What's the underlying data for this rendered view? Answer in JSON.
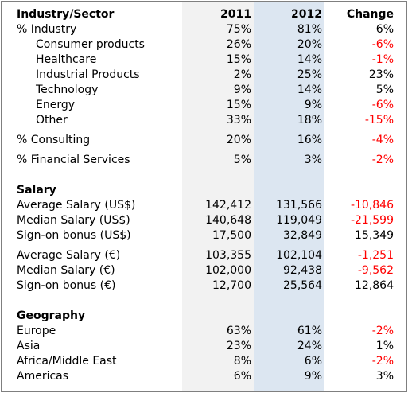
{
  "header": {
    "label": "Industry/Sector",
    "col_2011": "2011",
    "col_2012": "2012",
    "col_change": "Change"
  },
  "industry": [
    {
      "label": "% Industry",
      "v2011": "75%",
      "v2012": "81%",
      "change": "6%",
      "negative": false,
      "indent": false
    },
    {
      "label": "Consumer products",
      "v2011": "26%",
      "v2012": "20%",
      "change": "-6%",
      "negative": true,
      "indent": true
    },
    {
      "label": "Healthcare",
      "v2011": "15%",
      "v2012": "14%",
      "change": "-1%",
      "negative": true,
      "indent": true
    },
    {
      "label": "Industrial Products",
      "v2011": "2%",
      "v2012": "25%",
      "change": "23%",
      "negative": false,
      "indent": true
    },
    {
      "label": "Technology",
      "v2011": "9%",
      "v2012": "14%",
      "change": "5%",
      "negative": false,
      "indent": true
    },
    {
      "label": "Energy",
      "v2011": "15%",
      "v2012": "9%",
      "change": "-6%",
      "negative": true,
      "indent": true
    },
    {
      "label": "Other",
      "v2011": "33%",
      "v2012": "18%",
      "change": "-15%",
      "negative": true,
      "indent": true
    },
    {
      "label": "% Consulting",
      "v2011": "20%",
      "v2012": "16%",
      "change": "-4%",
      "negative": true,
      "indent": false
    },
    {
      "label": "% Financial Services",
      "v2011": "5%",
      "v2012": "3%",
      "change": "-2%",
      "negative": true,
      "indent": false
    }
  ],
  "salary": {
    "title": "Salary",
    "rows": [
      {
        "label": "Average Salary (US$)",
        "v2011": "142,412",
        "v2012": "131,566",
        "change": "-10,846",
        "negative": true
      },
      {
        "label": "Median Salary (US$)",
        "v2011": "140,648",
        "v2012": "119,049",
        "change": "-21,599",
        "negative": true
      },
      {
        "label": "Sign-on bonus (US$)",
        "v2011": "17,500",
        "v2012": "32,849",
        "change": "15,349",
        "negative": false
      },
      {
        "label": "Average Salary (€)",
        "v2011": "103,355",
        "v2012": "102,104",
        "change": "-1,251",
        "negative": true
      },
      {
        "label": "Median Salary (€)",
        "v2011": "102,000",
        "v2012": "92,438",
        "change": "-9,562",
        "negative": true
      },
      {
        "label": "Sign-on bonus (€)",
        "v2011": "12,700",
        "v2012": "25,564",
        "change": "12,864",
        "negative": false
      }
    ]
  },
  "geography": {
    "title": "Geography",
    "rows": [
      {
        "label": "Europe",
        "v2011": "63%",
        "v2012": "61%",
        "change": "-2%",
        "negative": true
      },
      {
        "label": "Asia",
        "v2011": "23%",
        "v2012": "24%",
        "change": "1%",
        "negative": false
      },
      {
        "label": "Africa/Middle East",
        "v2011": "8%",
        "v2012": "6%",
        "change": "-2%",
        "negative": true
      },
      {
        "label": "Americas",
        "v2011": "6%",
        "v2012": "9%",
        "change": "3%",
        "negative": false
      }
    ]
  },
  "colors": {
    "band_2011": "#f2f2f2",
    "band_2012": "#dce6f1",
    "negative": "#ff0000"
  }
}
